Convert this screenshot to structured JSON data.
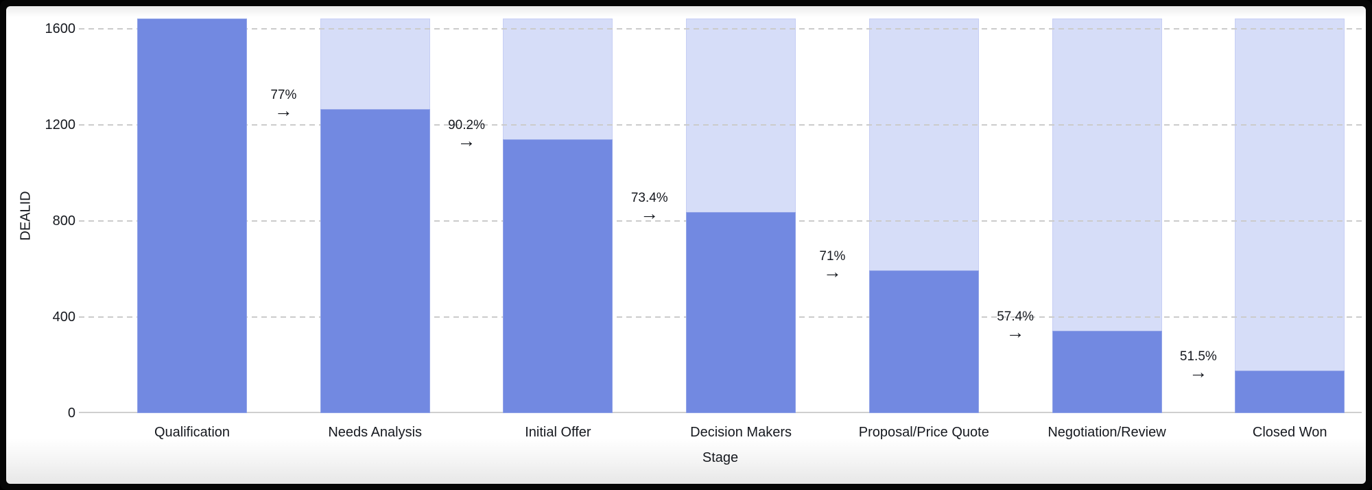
{
  "chart_data": {
    "type": "bar",
    "subtype": "funnel",
    "title": "",
    "xlabel": "Stage",
    "ylabel": "DEALID",
    "categories": [
      "Qualification",
      "Needs Analysis",
      "Initial Offer",
      "Decision Makers",
      "Proposal/Price Quote",
      "Negotiation/Review",
      "Closed Won"
    ],
    "values": [
      1644,
      1266,
      1142,
      838,
      595,
      342,
      176
    ],
    "conversion_rates": [
      "77%",
      "90.2%",
      "73.4%",
      "71%",
      "57.4%",
      "51.5%"
    ],
    "yticks": [
      0,
      400,
      800,
      1200,
      1600
    ],
    "ylim": [
      0,
      1644
    ],
    "grid": true,
    "gridline_style": "dashed",
    "legend": "none",
    "colors": {
      "bar_fill": "#7289E1",
      "bar_background": "#D6DDF8",
      "gridline": "#CBCBCB",
      "axis_line": "#CFCFCF",
      "text": "#15181E",
      "panel_background": "#FFFFFF",
      "frame": "#060606"
    },
    "icons": {
      "right_arrow": "→"
    }
  }
}
